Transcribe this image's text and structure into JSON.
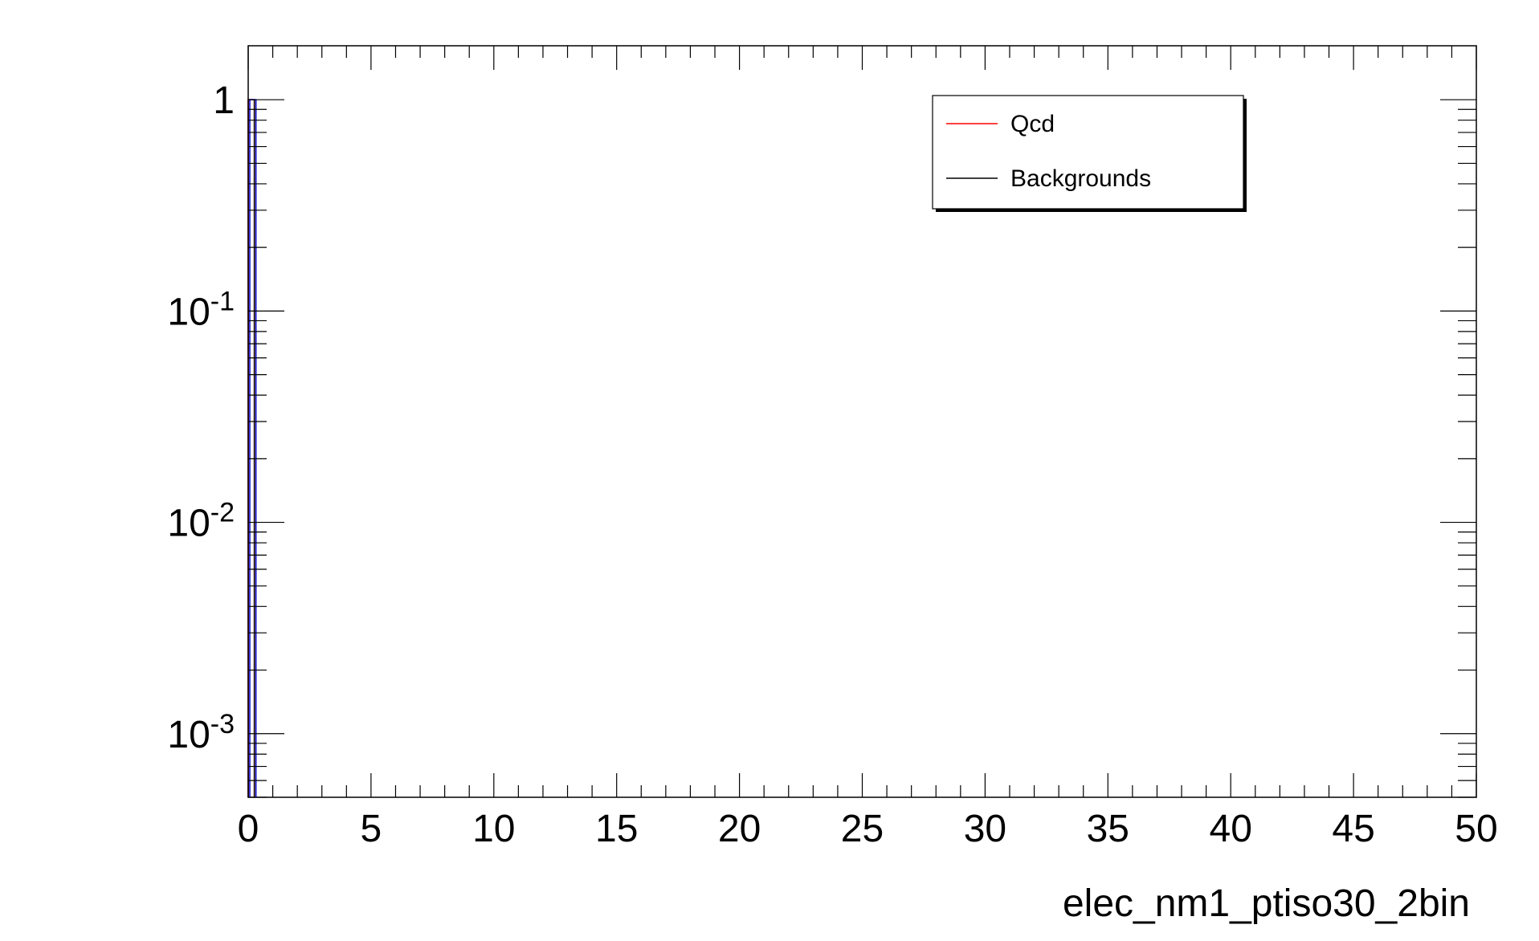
{
  "chart_data": {
    "type": "line",
    "xlabel": "elec_nm1_ptiso30_2bin",
    "ylabel": "",
    "xlim": [
      0,
      50
    ],
    "ylim": [
      0.0005,
      1.8
    ],
    "y_scale": "log",
    "x_ticks": [
      0,
      5,
      10,
      15,
      20,
      25,
      30,
      35,
      40,
      45,
      50
    ],
    "y_ticks": [
      {
        "value": 1,
        "base": "1",
        "exp": ""
      },
      {
        "value": 0.1,
        "base": "10",
        "exp": "-1"
      },
      {
        "value": 0.01,
        "base": "10",
        "exp": "-2"
      },
      {
        "value": 0.001,
        "base": "10",
        "exp": "-3"
      }
    ],
    "legend": {
      "placement": "top-right",
      "entries": [
        {
          "label": "Qcd",
          "color": "#ff0000"
        },
        {
          "label": "Backgrounds",
          "color": "#000000"
        }
      ]
    },
    "series": [
      {
        "name": "Qcd",
        "color": "#ff0000",
        "bins": [
          {
            "x0": 0,
            "x1": 0.25,
            "y": 1
          }
        ]
      },
      {
        "name": "Backgrounds",
        "color": "#000000",
        "bins": [
          {
            "x0": 0,
            "x1": 0.25,
            "y": 1
          }
        ]
      },
      {
        "color": "#0000cc",
        "bins": [
          {
            "x0": 0,
            "x1": 0.25,
            "y": 1
          }
        ]
      }
    ],
    "grid": false
  }
}
